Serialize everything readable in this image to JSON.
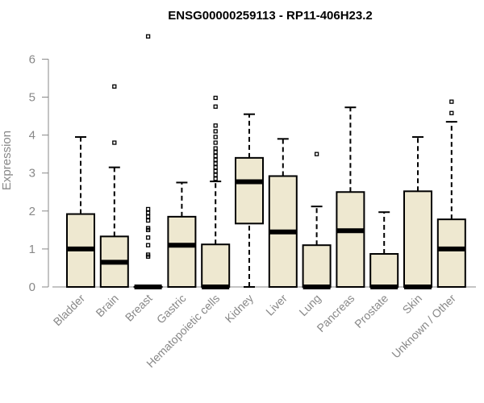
{
  "chart_data": {
    "type": "boxplot",
    "title": "ENSG00000259113 - RP11-406H23.2",
    "xlabel": "",
    "ylabel": "Expression",
    "ylim": [
      0,
      6.5
    ],
    "yticks": [
      0,
      1,
      2,
      3,
      4,
      5,
      6
    ],
    "grid": false,
    "box_fill": "#EEE8D0",
    "box_stroke": "#000000",
    "categories": [
      "Bladder",
      "Brain",
      "Breast",
      "Gastric",
      "Hematopoietic cells",
      "Kidney",
      "Liver",
      "Lung",
      "Pancreas",
      "Prostate",
      "Skin",
      "Unknown / Other"
    ],
    "boxes": [
      {
        "whisker_low": 0,
        "q1": 0,
        "median": 1.0,
        "q3": 1.92,
        "whisker_high": 3.95,
        "outliers": []
      },
      {
        "whisker_low": 0,
        "q1": 0,
        "median": 0.65,
        "q3": 1.33,
        "whisker_high": 3.15,
        "outliers": [
          3.8,
          5.28
        ]
      },
      {
        "whisker_low": 0,
        "q1": 0,
        "median": 0,
        "q3": 0,
        "whisker_high": 0,
        "outliers": [
          0.8,
          0.85,
          1.1,
          1.3,
          1.5,
          1.55,
          1.75,
          1.85,
          1.95,
          2.05,
          6.6
        ]
      },
      {
        "whisker_low": 0,
        "q1": 0,
        "median": 1.1,
        "q3": 1.85,
        "whisker_high": 2.75,
        "outliers": []
      },
      {
        "whisker_low": 0,
        "q1": 0,
        "median": 0,
        "q3": 1.12,
        "whisker_high": 2.78,
        "outliers": [
          2.85,
          2.95,
          3.05,
          3.15,
          3.25,
          3.35,
          3.45,
          3.55,
          3.65,
          3.8,
          3.95,
          4.1,
          4.25,
          4.75,
          4.98
        ]
      },
      {
        "whisker_low": 0,
        "q1": 1.67,
        "median": 2.77,
        "q3": 3.4,
        "whisker_high": 4.55,
        "outliers": []
      },
      {
        "whisker_low": 0,
        "q1": 0,
        "median": 1.45,
        "q3": 2.92,
        "whisker_high": 3.9,
        "outliers": []
      },
      {
        "whisker_low": 0,
        "q1": 0,
        "median": 0,
        "q3": 1.1,
        "whisker_high": 2.12,
        "outliers": [
          3.5
        ]
      },
      {
        "whisker_low": 0,
        "q1": 0,
        "median": 1.48,
        "q3": 2.5,
        "whisker_high": 4.73,
        "outliers": []
      },
      {
        "whisker_low": 0,
        "q1": 0,
        "median": 0,
        "q3": 0.87,
        "whisker_high": 1.97,
        "outliers": []
      },
      {
        "whisker_low": 0,
        "q1": 0,
        "median": 0,
        "q3": 2.52,
        "whisker_high": 3.95,
        "outliers": []
      },
      {
        "whisker_low": 0,
        "q1": 0,
        "median": 1.0,
        "q3": 1.78,
        "whisker_high": 4.35,
        "outliers": [
          4.58,
          4.88
        ]
      }
    ]
  }
}
